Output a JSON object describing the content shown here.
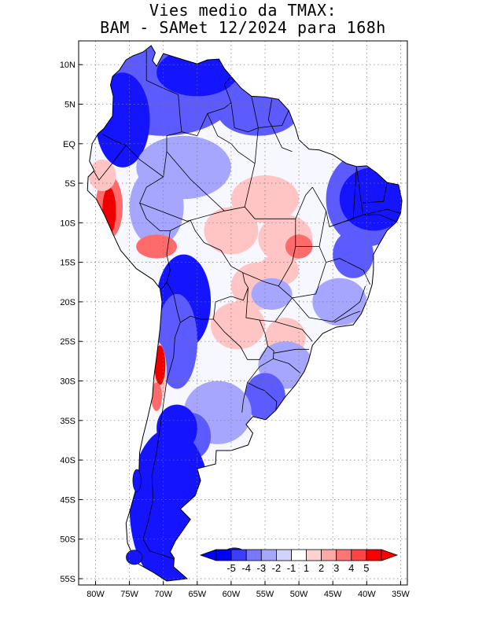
{
  "title": {
    "line1": "Vies medio da TMAX:",
    "line2": "BAM - SAMet 12/2024  para 168h"
  },
  "map": {
    "lat_labels": [
      "10N",
      "5N",
      "EQ",
      "5S",
      "10S",
      "15S",
      "20S",
      "25S",
      "30S",
      "35S",
      "40S",
      "45S",
      "50S",
      "55S"
    ],
    "lat_values": [
      10,
      5,
      0,
      -5,
      -10,
      -15,
      -20,
      -25,
      -30,
      -35,
      -40,
      -45,
      -50,
      -55
    ],
    "lon_labels": [
      "80W",
      "75W",
      "70W",
      "65W",
      "60W",
      "55W",
      "50W",
      "45W",
      "40W",
      "35W"
    ],
    "lon_values": [
      -80,
      -75,
      -70,
      -65,
      -60,
      -55,
      -50,
      -45,
      -40,
      -35
    ],
    "extent": {
      "lon_min": -82.5,
      "lon_max": -34,
      "lat_min": -55.8,
      "lat_max": 13
    },
    "grid_style": "dotted"
  },
  "colorbar": {
    "labels": [
      "-5",
      "-4",
      "-3",
      "-2",
      "-1",
      "1",
      "2",
      "3",
      "4",
      "5"
    ],
    "colors": [
      "#0000ff",
      "#3d3dff",
      "#7878ff",
      "#a6a6ff",
      "#d2d2ff",
      "#ffffff",
      "#ffd0d0",
      "#ffa8a8",
      "#ff7474",
      "#ff4444",
      "#ff0000"
    ],
    "underflow_color": "#0000ff",
    "overflow_color": "#ff0000"
  },
  "colors": {
    "strong_cold": "#1414ff",
    "cold": "#5b5bff",
    "mild_cold": "#a6a6ff",
    "neutral": "#f7f7ff",
    "mild_warm": "#ffc4c4",
    "warm": "#ff6a6a",
    "strong_warm": "#ee0000",
    "border": "#000000"
  }
}
